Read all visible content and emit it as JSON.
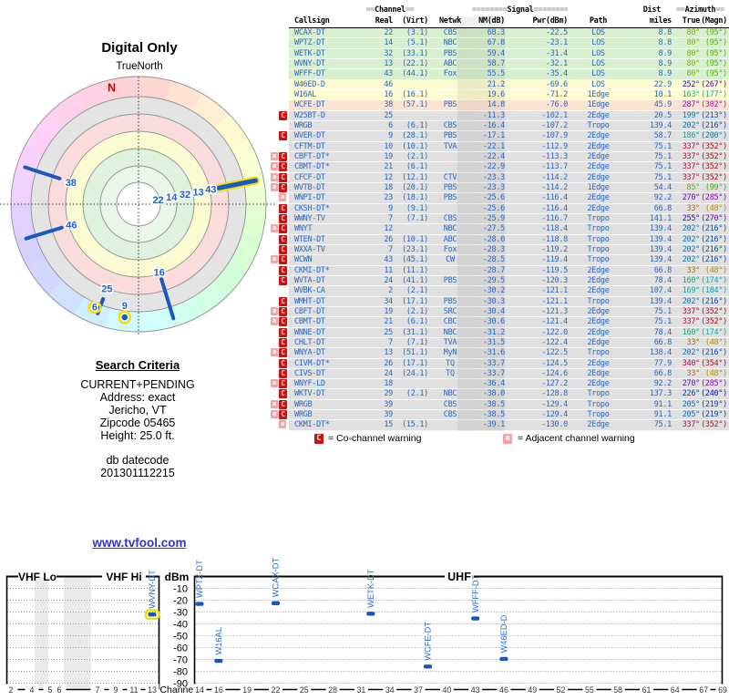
{
  "page": {
    "background": "#ffffff"
  },
  "radar": {
    "title": "Digital Only",
    "orientation_label": "TrueNorth",
    "north_label": "N",
    "accent_line_color": "#1a57c0",
    "highlight_color": "#f6e000",
    "label_color": "#1f5fd0",
    "cluster_labels": [
      "22",
      "14",
      "32",
      "13",
      "43"
    ],
    "cluster_azimuth": 78.6,
    "spokes": [
      {
        "label": "38",
        "az": 288,
        "r0": 91,
        "r1": 131,
        "highlight": false,
        "label_r": 78
      },
      {
        "label": "46",
        "az": 253,
        "r0": 88,
        "r1": 129,
        "highlight": false,
        "label_r": 77
      },
      {
        "label": "16",
        "az": 163,
        "r0": 86,
        "r1": 131,
        "highlight": false,
        "label_r": 78
      },
      {
        "label": "25",
        "az": 200.5,
        "r0": 111,
        "r1": 128,
        "highlight": false,
        "label_r": 99
      },
      {
        "label": "",
        "az": 78.6,
        "r0": 89,
        "r1": 131,
        "highlight": true,
        "label_r": 0
      }
    ],
    "dots": [
      {
        "label": "6",
        "az": 203,
        "r": 123,
        "marker": "text",
        "highlight": true
      },
      {
        "label": "9",
        "az": 187,
        "r": 125,
        "marker": "dot",
        "highlight": true
      }
    ]
  },
  "search_criteria": {
    "heading": "Search Criteria",
    "lines": [
      "CURRENT+PENDING",
      "Address: exact",
      "Jericho, VT",
      "Zipcode 05465",
      "Height: 25.0 ft."
    ],
    "footer_lines": [
      "db datecode",
      "201301112215"
    ]
  },
  "table": {
    "header_groups": {
      "channel": "==Channel==",
      "signal": "========Signal========",
      "dist": "Dist",
      "azimuth": "==Azimuth=="
    },
    "columns": [
      "Callsign",
      "Real",
      "(Virt)",
      "Netwk",
      "NM(dB)",
      "Pwr(dBm)",
      "Path",
      "miles",
      "True",
      "(Magn)"
    ],
    "tier_colors": {
      "strong": "#d8f0cf",
      "good": "#fdfbcf",
      "fair": "#fce4d2",
      "weak": "#e0e0e0"
    },
    "text_color": "#2767c8",
    "rows": [
      [
        "",
        "WCAX-DT",
        "22",
        "(3.1)",
        "CBS",
        "68.3",
        "-22.5",
        "LOS",
        "8.8",
        "80°",
        "(95°)",
        "strong"
      ],
      [
        "",
        "WPTZ-DT",
        "14",
        "(5.1)",
        "NBC",
        "67.8",
        "-23.1",
        "LOS",
        "8.8",
        "80°",
        "(95°)",
        "strong"
      ],
      [
        "",
        "WETK-DT",
        "32",
        "(33.1)",
        "PBS",
        "59.4",
        "-31.4",
        "LOS",
        "8.9",
        "80°",
        "(95°)",
        "strong"
      ],
      [
        "",
        "WVNY-DT",
        "13",
        "(22.1)",
        "ABC",
        "58.7",
        "-32.1",
        "LOS",
        "8.9",
        "80°",
        "(95°)",
        "strong"
      ],
      [
        "",
        "WFFF-DT",
        "43",
        "(44.1)",
        "Fox",
        "55.5",
        "-35.4",
        "LOS",
        "8.9",
        "80°",
        "(95°)",
        "strong"
      ],
      [
        "",
        "W46ED-D",
        "46",
        "",
        "",
        "21.2",
        "-69.6",
        "LOS",
        "22.9",
        "252°",
        "(267°)",
        "good"
      ],
      [
        "",
        "W16AL",
        "16",
        "(16.1)",
        "",
        "19.6",
        "-71.2",
        "1Edge",
        "10.1",
        "163°",
        "(177°)",
        "good"
      ],
      [
        "",
        "WCFE-DT",
        "38",
        "(57.1)",
        "PBS",
        "14.8",
        "-76.0",
        "1Edge",
        "45.9",
        "287°",
        "(302°)",
        "fair"
      ],
      [
        "C",
        "W25BT-D",
        "25",
        "",
        "",
        "-11.3",
        "-102.1",
        "2Edge",
        "20.5",
        "199°",
        "(213°)",
        "weak"
      ],
      [
        "",
        "WRGB",
        "6",
        "(6.1)",
        "CBS",
        "-16.4",
        "-107.2",
        "Tropo",
        "139.4",
        "202°",
        "(216°)",
        "weak"
      ],
      [
        "C",
        "WVER-DT",
        "9",
        "(28.1)",
        "PBS",
        "-17.1",
        "-107.9",
        "2Edge",
        "58.7",
        "186°",
        "(200°)",
        "weak"
      ],
      [
        "",
        "CFTM-DT",
        "10",
        "(10.1)",
        "TVA",
        "-22.1",
        "-112.9",
        "2Edge",
        "75.1",
        "337°",
        "(352°)",
        "weak"
      ],
      [
        "aC",
        "CBFT-DT*",
        "19",
        "(2.1)",
        "",
        "-22.4",
        "-113.3",
        "2Edge",
        "75.1",
        "337°",
        "(352°)",
        "weak"
      ],
      [
        "aC",
        "CBMT-DT*",
        "21",
        "(6.1)",
        "",
        "-22.9",
        "-113.7",
        "2Edge",
        "75.1",
        "337°",
        "(352°)",
        "weak"
      ],
      [
        "aC",
        "CFCF-DT",
        "12",
        "(12.1)",
        "CTV",
        "-23.3",
        "-114.2",
        "2Edge",
        "75.1",
        "337°",
        "(352°)",
        "weak"
      ],
      [
        "aC",
        "WVTB-DT",
        "18",
        "(20.1)",
        "PBS",
        "-23.3",
        "-114.2",
        "1Edge",
        "54.4",
        "85°",
        "(99°)",
        "weak"
      ],
      [
        "a",
        "WNPI-DT",
        "23",
        "(18.1)",
        "PBS",
        "-25.6",
        "-116.4",
        "2Edge",
        "92.2",
        "270°",
        "(285°)",
        "weak"
      ],
      [
        "C",
        "CKSH-DT*",
        "9",
        "(9.1)",
        "",
        "-25.6",
        "-116.4",
        "2Edge",
        "66.8",
        "33°",
        "(48°)",
        "weak"
      ],
      [
        "C",
        "WWNY-TV",
        "7",
        "(7.1)",
        "CBS",
        "-25.9",
        "-116.7",
        "Tropo",
        "141.1",
        "255°",
        "(270°)",
        "weak"
      ],
      [
        "aC",
        "WNYT",
        "12",
        "",
        "NBC",
        "-27.5",
        "-118.4",
        "Tropo",
        "139.4",
        "202°",
        "(216°)",
        "weak"
      ],
      [
        "C",
        "WTEN-DT",
        "26",
        "(10.1)",
        "ABC",
        "-28.0",
        "-118.8",
        "Tropo",
        "139.4",
        "202°",
        "(216°)",
        "weak"
      ],
      [
        "C",
        "WXXA-TV",
        "7",
        "(23.1)",
        "Fox",
        "-28.3",
        "-119.2",
        "Tropo",
        "139.4",
        "202°",
        "(216°)",
        "weak"
      ],
      [
        "aC",
        "WCWN",
        "43",
        "(45.1)",
        "CW",
        "-28.5",
        "-119.4",
        "Tropo",
        "139.4",
        "202°",
        "(216°)",
        "weak"
      ],
      [
        "C",
        "CKMI-DT*",
        "11",
        "(11.1)",
        "",
        "-28.7",
        "-119.5",
        "2Edge",
        "66.8",
        "33°",
        "(48°)",
        "weak"
      ],
      [
        "C",
        "WVTA-DT",
        "24",
        "(41.1)",
        "PBS",
        "-29.5",
        "-120.3",
        "2Edge",
        "78.4",
        "160°",
        "(174°)",
        "weak"
      ],
      [
        "",
        "WVBK-CA",
        "2",
        "(2.1)",
        "",
        "-30.2",
        "-121.1",
        "2Edge",
        "107.4",
        "169°",
        "(184°)",
        "weak"
      ],
      [
        "C",
        "WMHT-DT",
        "34",
        "(17.1)",
        "PBS",
        "-30.3",
        "-121.1",
        "Tropo",
        "139.4",
        "202°",
        "(216°)",
        "weak"
      ],
      [
        "aC",
        "CBFT-DT",
        "19",
        "(2.1)",
        "SRC",
        "-30.4",
        "-121.3",
        "2Edge",
        "75.1",
        "337°",
        "(352°)",
        "weak"
      ],
      [
        "aC",
        "CBMT-DT",
        "21",
        "(6.1)",
        "CBC",
        "-30.6",
        "-121.4",
        "2Edge",
        "75.1",
        "337°",
        "(352°)",
        "weak"
      ],
      [
        "C",
        "WNNE-DT",
        "25",
        "(31.1)",
        "NBC",
        "-31.2",
        "-122.0",
        "2Edge",
        "78.4",
        "160°",
        "(174°)",
        "weak"
      ],
      [
        "C",
        "CHLT-DT",
        "7",
        "(7.1)",
        "TVA",
        "-31.5",
        "-122.4",
        "2Edge",
        "66.8",
        "33°",
        "(48°)",
        "weak"
      ],
      [
        "aC",
        "WNYA-DT",
        "13",
        "(51.1)",
        "MyN",
        "-31.6",
        "-122.5",
        "Tropo",
        "138.4",
        "202°",
        "(216°)",
        "weak"
      ],
      [
        "C",
        "CIVM-DT*",
        "26",
        "(17.1)",
        "TQ",
        "-33.7",
        "-124.5",
        "2Edge",
        "77.9",
        "340°",
        "(354°)",
        "weak"
      ],
      [
        "C",
        "CIVS-DT",
        "24",
        "(24.1)",
        "TQ",
        "-33.7",
        "-124.6",
        "2Edge",
        "66.8",
        "33°",
        "(48°)",
        "weak"
      ],
      [
        "aC",
        "WNYF-LD",
        "18",
        "",
        "",
        "-36.4",
        "-127.2",
        "2Edge",
        "92.2",
        "270°",
        "(285°)",
        "weak"
      ],
      [
        "C",
        "WKTV-DT",
        "29",
        "(2.1)",
        "NBC",
        "-38.0",
        "-128.8",
        "Tropo",
        "137.3",
        "226°",
        "(240°)",
        "weak"
      ],
      [
        "aC",
        "WRGB",
        "39",
        "",
        "CBS",
        "-38.5",
        "-129.4",
        "Tropo",
        "91.1",
        "205°",
        "(219°)",
        "weak"
      ],
      [
        "aC",
        "WRGB",
        "39",
        "",
        "CBS",
        "-38.5",
        "-129.4",
        "Tropo",
        "91.1",
        "205°",
        "(219°)",
        "weak"
      ],
      [
        "a",
        "CKMI-DT*",
        "15",
        "(15.1)",
        "",
        "-39.1",
        "-130.0",
        "2Edge",
        "75.1",
        "337°",
        "(352°)",
        "weak"
      ]
    ]
  },
  "legend": {
    "co": {
      "symbol": "C",
      "text": "= Co-channel warning"
    },
    "adj": {
      "symbol": "a",
      "text": "= Adjacent channel warning"
    }
  },
  "link": {
    "text": "www.tvfool.com",
    "color": "#3333cc"
  },
  "chart_data": [
    {
      "type": "scatter",
      "name": "azimuth-radar",
      "title": "Digital Only",
      "orientation": "TrueNorth",
      "points": [
        {
          "label": "22 14 32 13 43",
          "azimuth_true_deg": 80,
          "note": "strong LOS cluster, highlighted"
        },
        {
          "label": "38",
          "azimuth_true_deg": 287
        },
        {
          "label": "46",
          "azimuth_true_deg": 252
        },
        {
          "label": "16",
          "azimuth_true_deg": 163
        },
        {
          "label": "25",
          "azimuth_true_deg": 199
        },
        {
          "label": "6",
          "azimuth_true_deg": 202,
          "note": "highlighted"
        },
        {
          "label": "9",
          "azimuth_true_deg": 186,
          "note": "highlighted"
        }
      ]
    },
    {
      "type": "scatter",
      "name": "signal-power-by-channel",
      "xlabel": "Channel",
      "ylabel": "dBm",
      "ylim": [
        0,
        -96
      ],
      "dbm_ticks": [
        -10,
        -20,
        -30,
        -40,
        -50,
        -60,
        -70,
        -80,
        -90
      ],
      "band_labels": {
        "vhf_lo": "VHF Lo",
        "vhf_hi": "VHF Hi",
        "uhf": "UHF"
      },
      "vhf_ticks": [
        2,
        4,
        5,
        6,
        7,
        9,
        11,
        13
      ],
      "uhf_ticks": [
        14,
        16,
        19,
        22,
        25,
        28,
        31,
        34,
        37,
        40,
        43,
        46,
        49,
        52,
        55,
        58,
        61,
        64,
        67,
        69
      ],
      "points": [
        {
          "callsign": "WVNY-DT",
          "channel": 13,
          "dbm": -32.1,
          "highlight": true
        },
        {
          "callsign": "WPTZ-DT",
          "channel": 14,
          "dbm": -23.1,
          "highlight": false
        },
        {
          "callsign": "W16AL",
          "channel": 16,
          "dbm": -71.2,
          "highlight": false
        },
        {
          "callsign": "WCAX-DT",
          "channel": 22,
          "dbm": -22.5,
          "highlight": false
        },
        {
          "callsign": "WETK-DT",
          "channel": 32,
          "dbm": -31.4,
          "highlight": false
        },
        {
          "callsign": "WCFE-DT",
          "channel": 38,
          "dbm": -76.0,
          "highlight": false
        },
        {
          "callsign": "WFFF-DT",
          "channel": 43,
          "dbm": -35.4,
          "highlight": false
        },
        {
          "callsign": "W46ED-D",
          "channel": 46,
          "dbm": -69.6,
          "highlight": false
        }
      ]
    }
  ]
}
